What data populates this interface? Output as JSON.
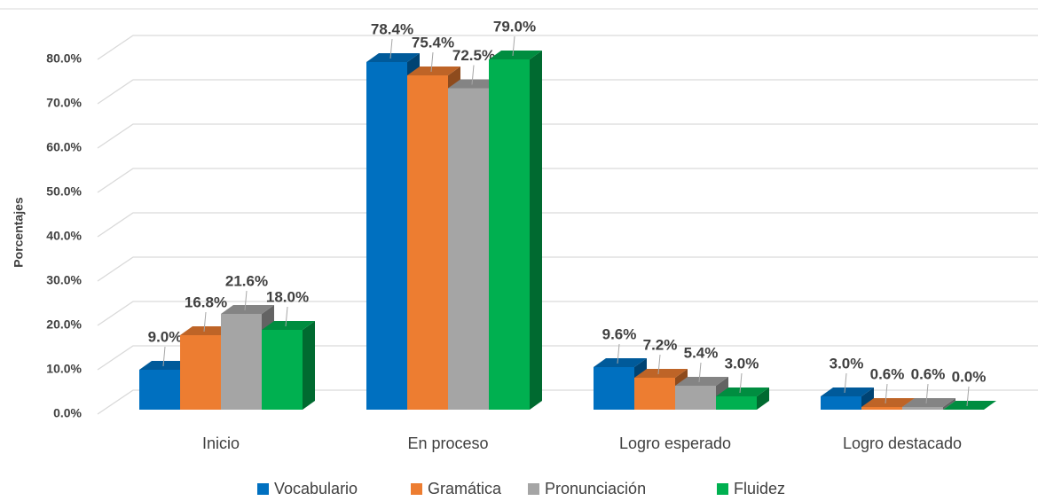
{
  "chart_data": {
    "type": "bar3d",
    "y_label": "Porcentajes",
    "categories": [
      "Inicio",
      "En proceso",
      "Logro esperado",
      "Logro destacado"
    ],
    "series": [
      {
        "name": "Vocabulario",
        "color": "#0070c0",
        "values": [
          9.0,
          78.4,
          9.6,
          3.0
        ],
        "value_labels": [
          "9.0%",
          "78.4%",
          "9.6%",
          "3.0%"
        ]
      },
      {
        "name": "Gramática",
        "color": "#ed7d31",
        "values": [
          16.8,
          75.4,
          7.2,
          0.6
        ],
        "value_labels": [
          "16.8%",
          "75.4%",
          "7.2%",
          "0.6%"
        ]
      },
      {
        "name": "Pronunciación",
        "color": "#a5a5a5",
        "values": [
          21.6,
          72.5,
          5.4,
          0.6
        ],
        "value_labels": [
          "21.6%",
          "72.5%",
          "5.4%",
          "0.6%"
        ]
      },
      {
        "name": "Fluidez",
        "color": "#00b050",
        "values": [
          18.0,
          79.0,
          3.0,
          0.0
        ],
        "value_labels": [
          "18.0%",
          "79.0%",
          "3.0%",
          "0.0%"
        ]
      }
    ],
    "ylim": [
      0,
      80
    ],
    "yticks": [
      {
        "value": 0,
        "label": "0.0%"
      },
      {
        "value": 10,
        "label": "10.0%"
      },
      {
        "value": 20,
        "label": "20.0%"
      },
      {
        "value": 30,
        "label": "30.0%"
      },
      {
        "value": 40,
        "label": "40.0%"
      },
      {
        "value": 50,
        "label": "50.0%"
      },
      {
        "value": 60,
        "label": "60.0%"
      },
      {
        "value": 70,
        "label": "70.0%"
      },
      {
        "value": 80,
        "label": "80.0%"
      }
    ],
    "grid": true,
    "legend": "bottom"
  }
}
